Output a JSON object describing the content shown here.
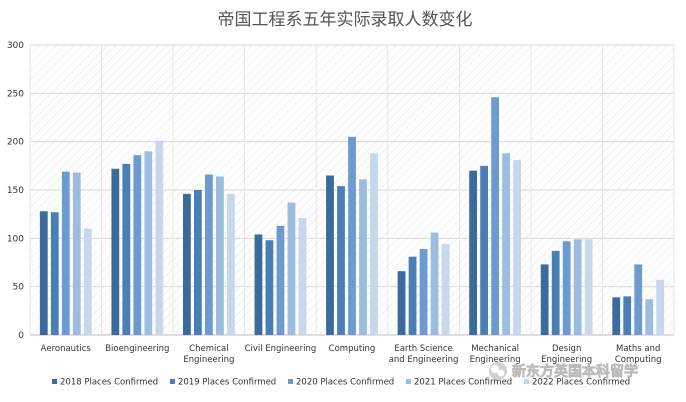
{
  "chart_data": {
    "type": "bar",
    "title": "帝国工程系五年实际录取人数变化",
    "categories": [
      "Aeronautics",
      "Bioengineering",
      "Chemical Engineering",
      "Civil Engineering",
      "Computing",
      "Earth Science and Engineering",
      "Mechanical Engineering",
      "Design Engineering",
      "Maths and Computing"
    ],
    "category_lines": [
      [
        "Aeronautics"
      ],
      [
        "Bioengineering"
      ],
      [
        "Chemical",
        "Engineering"
      ],
      [
        "Civil Engineering"
      ],
      [
        "Computing"
      ],
      [
        "Earth Science",
        "and Engineering"
      ],
      [
        "Mechanical",
        "Engineering"
      ],
      [
        "Design",
        "Engineering"
      ],
      [
        "Maths and",
        "Computing"
      ]
    ],
    "series": [
      {
        "name": "2018 Places Confirmed",
        "color": "#3a6b9c",
        "values": [
          128,
          172,
          146,
          104,
          165,
          66,
          170,
          73,
          39
        ]
      },
      {
        "name": "2019 Places Confirmed",
        "color": "#4a7fb5",
        "values": [
          127,
          177,
          150,
          98,
          154,
          81,
          175,
          87,
          40
        ]
      },
      {
        "name": "2020 Places Confirmed",
        "color": "#6b9bd0",
        "values": [
          169,
          186,
          166,
          113,
          205,
          89,
          246,
          97,
          73
        ]
      },
      {
        "name": "2021 Places Confirmed",
        "color": "#9cbde0",
        "values": [
          168,
          190,
          164,
          137,
          161,
          106,
          188,
          99,
          37
        ]
      },
      {
        "name": "2022 Places Confirmed",
        "color": "#c7d8ee",
        "values": [
          110,
          201,
          146,
          121,
          188,
          94,
          181,
          99,
          57
        ]
      }
    ],
    "ylim": [
      0,
      300
    ],
    "yticks": [
      0,
      50,
      100,
      150,
      200,
      250,
      300
    ],
    "grid": true,
    "legend_position": "bottom"
  },
  "watermark": {
    "text": "新东方英国本科留学",
    "icon": "wechat-icon"
  }
}
